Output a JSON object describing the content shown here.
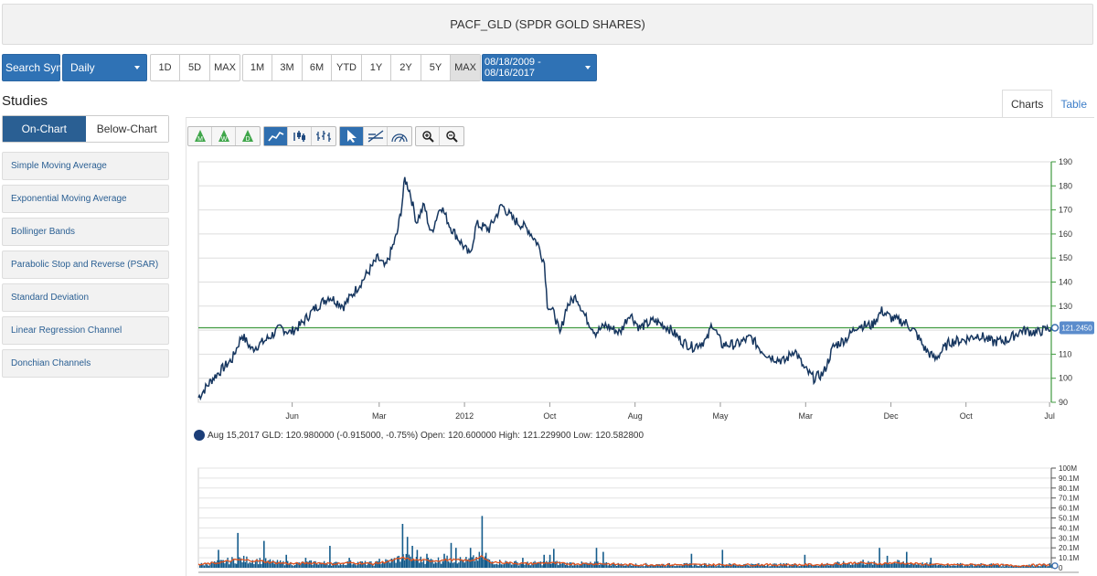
{
  "header": {
    "title": "PACF_GLD (SPDR GOLD SHARES)"
  },
  "toolbar": {
    "search_label": "Search Symbol",
    "interval_value": "Daily",
    "periods_a": [
      "1D",
      "5D",
      "MAX"
    ],
    "periods_b": [
      "1M",
      "3M",
      "6M",
      "YTD",
      "1Y",
      "2Y",
      "5Y",
      "MAX"
    ],
    "active_period": "MAX",
    "date_range": "08/18/2009 - 08/16/2017"
  },
  "studies": {
    "title": "Studies",
    "tab_on": "On-Chart",
    "tab_below": "Below-Chart",
    "items": [
      "Simple Moving Average",
      "Exponential Moving Average",
      "Bollinger Bands",
      "Parabolic Stop and Reverse (PSAR)",
      "Standard Deviation",
      "Linear Regression Channel",
      "Donchian Channels"
    ]
  },
  "view_tabs": {
    "charts": "Charts",
    "table": "Table"
  },
  "chart_tools": {
    "period_buttons": [
      "M",
      "W",
      "D"
    ],
    "icons": [
      "monthly-icon",
      "weekly-icon",
      "daily-icon",
      "line-chart-icon",
      "ohlc-bar-icon",
      "candlestick-icon",
      "pointer-icon",
      "trendline-icon",
      "fibonacci-icon",
      "zoom-in-icon",
      "zoom-out-icon"
    ]
  },
  "info_line": "Aug 15,2017 GLD: 120.980000 (-0.915000, -0.75%) Open: 120.600000 High: 121.229900 Low: 120.582800",
  "colors": {
    "price_line": "#16365f",
    "reference_line": "#3f9a3f",
    "volume_bars": "#155c8c",
    "volume_avg": "#e0521d",
    "accent": "#2f72b5"
  },
  "chart_data": [
    {
      "type": "line",
      "series": [
        {
          "values": [
            [
              0,
              92
            ],
            [
              1.5,
              100
            ],
            [
              3.5,
              108
            ],
            [
              4.5,
              118
            ],
            [
              5.5,
              112
            ],
            [
              7,
              116
            ],
            [
              8.5,
              121
            ],
            [
              9.5,
              119
            ],
            [
              10.5,
              122
            ],
            [
              12,
              129
            ],
            [
              13.5,
              134
            ],
            [
              15,
              130
            ],
            [
              17,
              141
            ],
            [
              18.5,
              150
            ],
            [
              19.3,
              146
            ],
            [
              20.5,
              160
            ],
            [
              21,
              172
            ],
            [
              21.3,
              183
            ],
            [
              21.8,
              178
            ],
            [
              22.5,
              165
            ],
            [
              23.3,
              172
            ],
            [
              24,
              160
            ],
            [
              25,
              172
            ],
            [
              26,
              163
            ],
            [
              27,
              157
            ],
            [
              28,
              151
            ],
            [
              28.7,
              164
            ],
            [
              30,
              162
            ],
            [
              31.3,
              172
            ],
            [
              32.5,
              166
            ],
            [
              34,
              162
            ],
            [
              35,
              156
            ],
            [
              35.7,
              148
            ],
            [
              36,
              131
            ],
            [
              36.8,
              126
            ],
            [
              37.3,
              118
            ],
            [
              38,
              130
            ],
            [
              39,
              134
            ],
            [
              40,
              125
            ],
            [
              41,
              119
            ],
            [
              42,
              122
            ],
            [
              43.5,
              119
            ],
            [
              44.5,
              127
            ],
            [
              45.5,
              121
            ],
            [
              47,
              124
            ],
            [
              48.5,
              121
            ],
            [
              50,
              115
            ],
            [
              51,
              113
            ],
            [
              52.5,
              116
            ],
            [
              53,
              123
            ],
            [
              54,
              114
            ],
            [
              55.5,
              114
            ],
            [
              57,
              117
            ],
            [
              58,
              112
            ],
            [
              59,
              109
            ],
            [
              60.5,
              107
            ],
            [
              61.5,
              112
            ],
            [
              62.5,
              104
            ],
            [
              63.5,
              100
            ],
            [
              64.5,
              102
            ],
            [
              65.5,
              113
            ],
            [
              67,
              117
            ],
            [
              68,
              122
            ],
            [
              69.5,
              122
            ],
            [
              70.5,
              128
            ],
            [
              71.5,
              125
            ],
            [
              73,
              123
            ],
            [
              74,
              119
            ],
            [
              75,
              112
            ],
            [
              76,
              108
            ],
            [
              77.5,
              115
            ],
            [
              79,
              116
            ],
            [
              80.5,
              118
            ],
            [
              82,
              115
            ],
            [
              83.5,
              116
            ],
            [
              85,
              120
            ],
            [
              86.5,
              119
            ],
            [
              88,
              121
            ]
          ]
        }
      ],
      "x_tick_labels": [
        "Jun",
        "Mar",
        "2012",
        "Oct",
        "Aug",
        "May",
        "Mar",
        "Dec",
        "Oct",
        "Jul"
      ],
      "y_ticks": [
        90,
        100,
        110,
        120,
        130,
        140,
        150,
        160,
        170,
        180,
        190
      ],
      "ylim": [
        90,
        190
      ],
      "reference_line": 121,
      "last_value_label": "121.2450",
      "grid": true
    },
    {
      "type": "bar",
      "y_tick_labels": [
        "0",
        "10.1M",
        "20.1M",
        "30.1M",
        "40.1M",
        "50.1M",
        "60.1M",
        "70.1M",
        "80.1M",
        "90.1M",
        "100M"
      ],
      "ylim_millions": [
        0,
        100
      ],
      "spikes_millions": [
        [
          2,
          18
        ],
        [
          4,
          35
        ],
        [
          6.7,
          27
        ],
        [
          9,
          13
        ],
        [
          11,
          10
        ],
        [
          13.5,
          22
        ],
        [
          15.5,
          10
        ],
        [
          18.6,
          9
        ],
        [
          21,
          44
        ],
        [
          21.5,
          31
        ],
        [
          22,
          22
        ],
        [
          22.5,
          18
        ],
        [
          23.5,
          14
        ],
        [
          25.3,
          14
        ],
        [
          26,
          25
        ],
        [
          26.5,
          20
        ],
        [
          28,
          20
        ],
        [
          29.2,
          52
        ],
        [
          29.6,
          15
        ],
        [
          33.4,
          10
        ],
        [
          35.6,
          13
        ],
        [
          36.2,
          13
        ],
        [
          36.6,
          19
        ],
        [
          41,
          20
        ],
        [
          41.7,
          16
        ],
        [
          50.8,
          14
        ],
        [
          54,
          18
        ],
        [
          62.5,
          13
        ],
        [
          68.5,
          8
        ],
        [
          70.2,
          20
        ],
        [
          71,
          12
        ],
        [
          73,
          16
        ],
        [
          75.5,
          10
        ]
      ],
      "avg_line_millions": [
        [
          0,
          3
        ],
        [
          2,
          5
        ],
        [
          4,
          8
        ],
        [
          6,
          7
        ],
        [
          8,
          5
        ],
        [
          10,
          4
        ],
        [
          12,
          5
        ],
        [
          14,
          4
        ],
        [
          16,
          5
        ],
        [
          18,
          4
        ],
        [
          20,
          7
        ],
        [
          21,
          10
        ],
        [
          22,
          8
        ],
        [
          24,
          7
        ],
        [
          26,
          8
        ],
        [
          28,
          7
        ],
        [
          29.2,
          11
        ],
        [
          30,
          6
        ],
        [
          32,
          5
        ],
        [
          34,
          4
        ],
        [
          36,
          5
        ],
        [
          38,
          4
        ],
        [
          40,
          4
        ],
        [
          42,
          4
        ],
        [
          44,
          3
        ],
        [
          48,
          3
        ],
        [
          52,
          3
        ],
        [
          56,
          3
        ],
        [
          60,
          3
        ],
        [
          62,
          3
        ],
        [
          64,
          3
        ],
        [
          66,
          4
        ],
        [
          68,
          5
        ],
        [
          70,
          4
        ],
        [
          72,
          5
        ],
        [
          74,
          4
        ],
        [
          76,
          3
        ],
        [
          78,
          3
        ],
        [
          80,
          3
        ],
        [
          82,
          3
        ],
        [
          84,
          2
        ],
        [
          88,
          3
        ]
      ]
    }
  ]
}
